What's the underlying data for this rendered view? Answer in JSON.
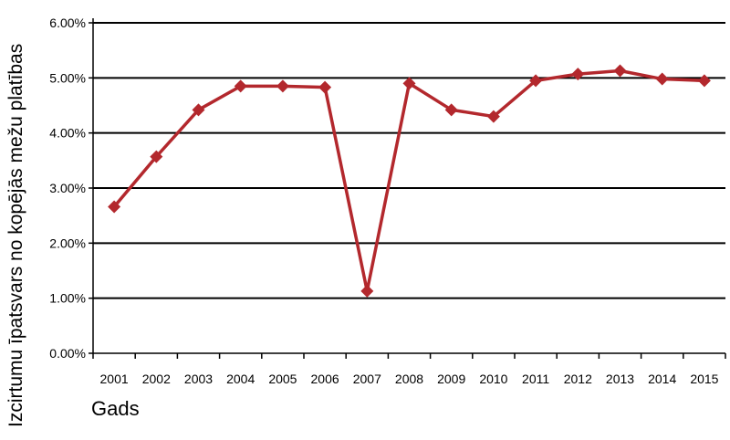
{
  "chart_data": {
    "type": "line",
    "x": [
      "2001",
      "2002",
      "2003",
      "2004",
      "2005",
      "2006",
      "2007",
      "2008",
      "2009",
      "2010",
      "2011",
      "2012",
      "2013",
      "2014",
      "2015"
    ],
    "series": [
      {
        "values": [
          2.66,
          3.57,
          4.42,
          4.85,
          4.85,
          4.83,
          1.13,
          4.9,
          4.42,
          4.3,
          4.95,
          5.07,
          5.13,
          4.98,
          4.95
        ],
        "color": "#b3282d",
        "marker": "diamond"
      }
    ],
    "title": "",
    "xlabel": "Gads",
    "ylabel": "Izcirtumu īpatsvars no kopējās mežu platības",
    "ylim": [
      0,
      6
    ],
    "yticks": [
      "0.00%",
      "1.00%",
      "2.00%",
      "3.00%",
      "4.00%",
      "5.00%",
      "6.00%"
    ],
    "grid": "horizontal",
    "legend": "none"
  }
}
